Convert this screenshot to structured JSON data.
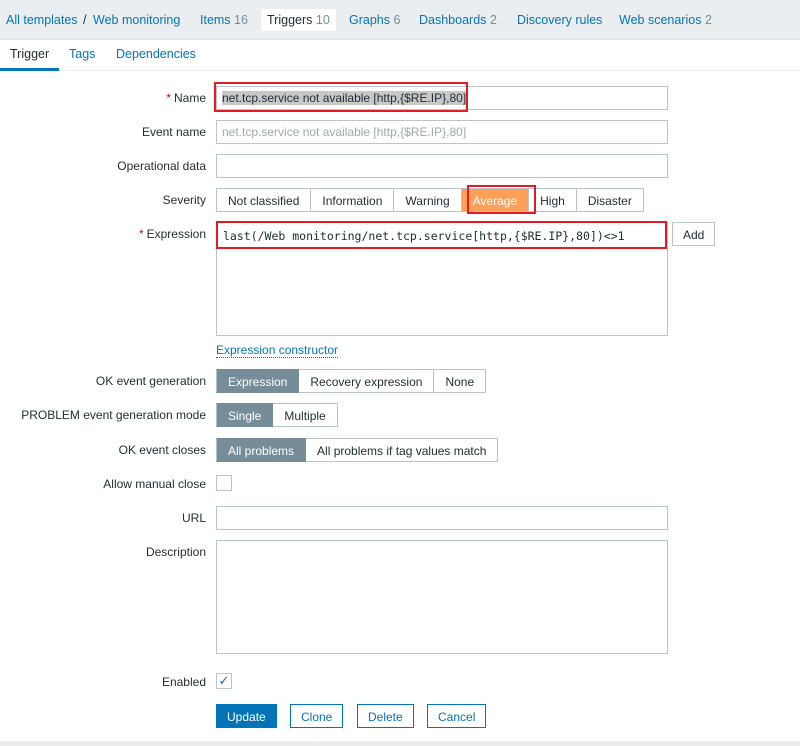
{
  "nav": {
    "breadcrumb": [
      {
        "label": "All templates"
      },
      {
        "label": "Web monitoring"
      }
    ],
    "separator": "/",
    "items": [
      {
        "label": "Items",
        "count": "16"
      },
      {
        "label": "Triggers",
        "count": "10"
      },
      {
        "label": "Graphs",
        "count": "6"
      },
      {
        "label": "Dashboards",
        "count": "2"
      },
      {
        "label": "Discovery rules",
        "count": ""
      },
      {
        "label": "Web scenarios",
        "count": "2"
      }
    ]
  },
  "tabs": [
    "Trigger",
    "Tags",
    "Dependencies"
  ],
  "form": {
    "name": {
      "label": "Name",
      "value": "net.tcp.service not available [http,{$RE.IP},80]"
    },
    "event_name": {
      "label": "Event name",
      "placeholder": "net.tcp.service not available [http,{$RE.IP},80]"
    },
    "operational_data": {
      "label": "Operational data",
      "value": ""
    },
    "severity": {
      "label": "Severity",
      "options": [
        "Not classified",
        "Information",
        "Warning",
        "Average",
        "High",
        "Disaster"
      ],
      "selected": "Average"
    },
    "expression": {
      "label": "Expression",
      "value": "last(/Web monitoring/net.tcp.service[http,{$RE.IP},80])<>1",
      "add": "Add",
      "constructor": "Expression constructor"
    },
    "ok_event_generation": {
      "label": "OK event generation",
      "options": [
        "Expression",
        "Recovery expression",
        "None"
      ],
      "selected": "Expression"
    },
    "problem_mode": {
      "label": "PROBLEM event generation mode",
      "options": [
        "Single",
        "Multiple"
      ],
      "selected": "Single"
    },
    "ok_event_closes": {
      "label": "OK event closes",
      "options": [
        "All problems",
        "All problems if tag values match"
      ],
      "selected": "All problems"
    },
    "manual_close": {
      "label": "Allow manual close",
      "checked": false
    },
    "url": {
      "label": "URL",
      "value": ""
    },
    "description": {
      "label": "Description",
      "value": ""
    },
    "enabled": {
      "label": "Enabled",
      "checked": true,
      "check": "✓"
    },
    "buttons": {
      "update": "Update",
      "clone": "Clone",
      "delete": "Delete",
      "cancel": "Cancel"
    }
  },
  "colors": {
    "accent": "#0275b8",
    "severity_average": "#ffa059",
    "highlight": "#e01c24"
  }
}
